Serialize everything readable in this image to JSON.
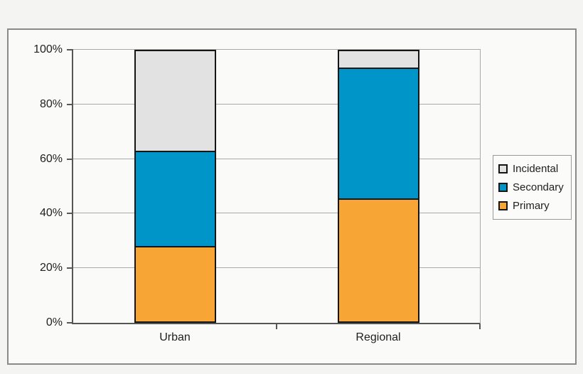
{
  "chart_data": {
    "type": "bar",
    "stacked": true,
    "title": "",
    "categories": [
      "Urban",
      "Regional"
    ],
    "series": [
      {
        "name": "Primary",
        "color": "#f7a636",
        "values": [
          27.5,
          45
        ]
      },
      {
        "name": "Secondary",
        "color": "#0095c8",
        "values": [
          35,
          48
        ]
      },
      {
        "name": "Incidental",
        "color": "#e2e2e2",
        "values": [
          37.5,
          7
        ]
      }
    ],
    "xlabel": "",
    "ylabel": "",
    "ylim": [
      0,
      100
    ],
    "ytick_step": 20,
    "yticks": [
      "0%",
      "20%",
      "40%",
      "60%",
      "80%",
      "100%"
    ],
    "grid": true,
    "legend_position": "right",
    "legend": [
      "Incidental",
      "Secondary",
      "Primary"
    ]
  },
  "colors": {
    "page_background": "#f4f4f2",
    "frame_background": "#fafaf8",
    "frame_border": "#8a8a8a",
    "gridline": "#a9a9a9",
    "axis": "#565656",
    "segment_border": "#151515",
    "text": "#1f1f1f"
  }
}
